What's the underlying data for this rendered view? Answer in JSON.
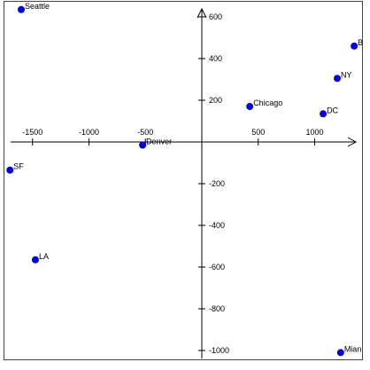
{
  "chart_data": {
    "type": "scatter",
    "xlim": [
      -1700,
      1380
    ],
    "ylim": [
      -1010,
      650
    ],
    "x_ticks": [
      -1500,
      -1000,
      -500,
      500,
      1000
    ],
    "x_tick_labels": [
      "-1500",
      "-1000",
      "-500",
      "500",
      "1000"
    ],
    "y_ticks": [
      -1000,
      -800,
      -600,
      -400,
      -200,
      200,
      400,
      600
    ],
    "y_tick_labels": [
      "-1000",
      "-800",
      "-600",
      "-400",
      "-200",
      "200",
      "400",
      "600"
    ],
    "grid": false,
    "marker_color": "#0000dd",
    "points": [
      {
        "label": "Seattle",
        "x": -1600,
        "y": 635
      },
      {
        "label": "B",
        "x": 1350,
        "y": 460
      },
      {
        "label": "NY",
        "x": 1200,
        "y": 305
      },
      {
        "label": "Chicago",
        "x": 425,
        "y": 170
      },
      {
        "label": "DC",
        "x": 1075,
        "y": 135
      },
      {
        "label": "Denver",
        "x": -525,
        "y": -15
      },
      {
        "label": "SF",
        "x": -1700,
        "y": -135
      },
      {
        "label": "LA",
        "x": -1475,
        "y": -565
      },
      {
        "label": "Mian",
        "x": 1230,
        "y": -1010
      }
    ]
  }
}
